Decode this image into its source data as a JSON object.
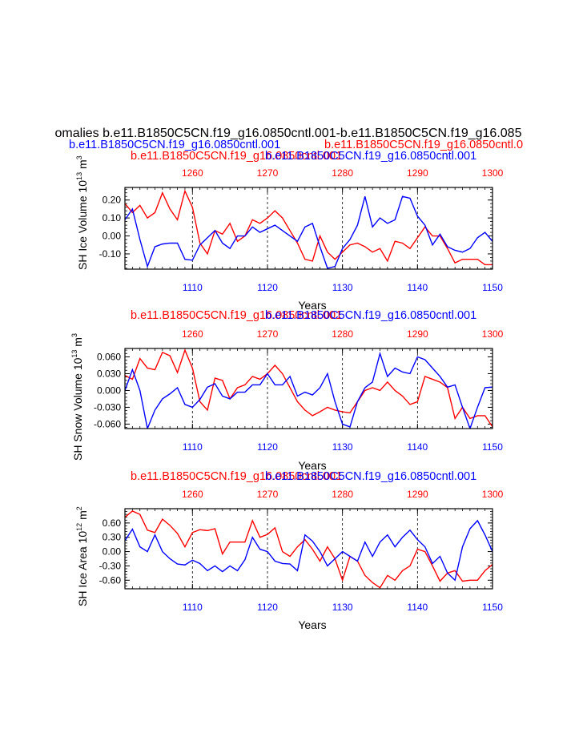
{
  "colors": {
    "red": "#ff0000",
    "blue": "#0000ff",
    "black": "#000000"
  },
  "header": {
    "main_title": "omalies b.e11.B1850C5CN.f19_g16.0850cntl.001-b.e11.B1850C5CN.f19_g16.085",
    "blue_case": "b.e11.B1850C5CN.f19_g16.0850cntl.001",
    "red_case": "b.e11.B1850C5CN.f19_g16.0850cntl.0"
  },
  "chart_data": [
    {
      "type": "line",
      "ylabel": "SH Ice Volume 10",
      "ylabel_exp1": "13",
      "ylabel_unit": " m",
      "ylabel_exp2": "3",
      "xlabel": "Years",
      "red_title": "b.e11.B1850C5CN.f19_g16.0850cntl.001",
      "blue_title": "b.e11.B1850C5CN.f19_g16.0850cntl.001",
      "ylim": [
        -0.185,
        0.27
      ],
      "yticks": [
        0.2,
        0.1,
        0.0,
        -0.1
      ],
      "ytick_labels": [
        "0.20",
        "0.10",
        "0.00",
        "-0.10"
      ],
      "top_axis": {
        "range": [
          1251,
          1300
        ],
        "ticks": [
          1260,
          1270,
          1280,
          1290,
          1300
        ],
        "labels": [
          "1260",
          "1270",
          "1280",
          "1290",
          "1300"
        ]
      },
      "bottom_axis": {
        "range": [
          1101,
          1150
        ],
        "ticks": [
          1110,
          1120,
          1130,
          1140,
          1150
        ],
        "labels": [
          "1110",
          "1120",
          "1130",
          "1140",
          "1150"
        ]
      },
      "series": [
        {
          "name": "red",
          "color": "red",
          "x_start": 1251,
          "values": [
            0.18,
            0.13,
            0.17,
            0.1,
            0.13,
            0.24,
            0.15,
            0.09,
            0.25,
            0.16,
            -0.04,
            -0.1,
            0.03,
            0.01,
            0.07,
            -0.03,
            0.0,
            0.09,
            0.07,
            0.1,
            0.14,
            0.1,
            0.03,
            -0.04,
            -0.13,
            -0.14,
            0.0,
            -0.09,
            -0.13,
            -0.09,
            -0.05,
            -0.04,
            -0.06,
            -0.09,
            -0.07,
            -0.14,
            -0.03,
            -0.04,
            -0.07,
            -0.01,
            0.05,
            0.0,
            0.0,
            -0.07,
            -0.15,
            -0.13,
            -0.13,
            -0.13,
            -0.16,
            -0.16
          ]
        },
        {
          "name": "blue",
          "color": "blue",
          "x_start": 1101,
          "values": [
            0.09,
            0.15,
            -0.02,
            -0.17,
            -0.06,
            -0.045,
            -0.04,
            -0.04,
            -0.13,
            -0.135,
            -0.05,
            -0.01,
            0.03,
            -0.04,
            -0.07,
            0.0,
            0.0,
            0.05,
            0.02,
            0.04,
            0.06,
            0.03,
            0.0,
            -0.03,
            0.05,
            0.07,
            -0.06,
            -0.18,
            -0.17,
            -0.07,
            -0.02,
            0.06,
            0.22,
            0.05,
            0.1,
            0.07,
            0.09,
            0.22,
            0.21,
            0.11,
            0.06,
            -0.05,
            0.01,
            -0.06,
            -0.08,
            -0.09,
            -0.07,
            -0.01,
            0.02,
            -0.03
          ]
        }
      ]
    },
    {
      "type": "line",
      "ylabel": "SH Snow Volume 10",
      "ylabel_exp1": "13",
      "ylabel_unit": " m",
      "ylabel_exp2": "3",
      "xlabel": "Years",
      "red_title": "b.e11.B1850C5CN.f19_g16.0850cntl.001",
      "blue_title": "b.e11.B1850C5CN.f19_g16.0850cntl.001",
      "ylim": [
        -0.068,
        0.075
      ],
      "yticks": [
        0.06,
        0.03,
        0.0,
        -0.03,
        -0.06
      ],
      "ytick_labels": [
        "0.060",
        "0.030",
        "0.000",
        "-0.030",
        "-0.060"
      ],
      "top_axis": {
        "range": [
          1251,
          1300
        ],
        "ticks": [
          1260,
          1270,
          1280,
          1290,
          1300
        ],
        "labels": [
          "1260",
          "1270",
          "1280",
          "1290",
          "1300"
        ]
      },
      "bottom_axis": {
        "range": [
          1101,
          1150
        ],
        "ticks": [
          1110,
          1120,
          1130,
          1140,
          1150
        ],
        "labels": [
          "1110",
          "1120",
          "1130",
          "1140",
          "1150"
        ]
      },
      "series": [
        {
          "name": "red",
          "color": "red",
          "x_start": 1251,
          "values": [
            0.027,
            0.02,
            0.057,
            0.04,
            0.037,
            0.068,
            0.062,
            0.032,
            0.072,
            0.04,
            -0.02,
            -0.035,
            0.022,
            0.018,
            -0.015,
            0.005,
            0.01,
            0.025,
            0.02,
            0.03,
            0.045,
            0.03,
            0.005,
            -0.02,
            -0.035,
            -0.045,
            -0.038,
            -0.03,
            -0.035,
            -0.038,
            -0.04,
            -0.02,
            0.0,
            0.005,
            0.0,
            0.015,
            0.0,
            -0.01,
            -0.025,
            -0.02,
            0.025,
            0.02,
            0.015,
            0.005,
            -0.05,
            -0.03,
            -0.05,
            -0.045,
            -0.045,
            -0.065
          ]
        },
        {
          "name": "blue",
          "color": "blue",
          "x_start": 1101,
          "values": [
            0.0,
            0.037,
            0.0,
            -0.068,
            -0.035,
            -0.015,
            -0.006,
            0.005,
            -0.025,
            -0.03,
            -0.016,
            0.006,
            0.012,
            -0.01,
            -0.015,
            -0.003,
            -0.003,
            0.01,
            0.01,
            0.03,
            0.01,
            0.01,
            0.025,
            -0.01,
            -0.003,
            -0.008,
            0.005,
            0.03,
            -0.02,
            -0.06,
            -0.065,
            -0.02,
            0.005,
            0.015,
            0.066,
            0.025,
            0.04,
            0.033,
            0.03,
            0.06,
            0.055,
            0.04,
            0.025,
            0.006,
            0.01,
            -0.03,
            -0.068,
            -0.03,
            0.005,
            0.006
          ]
        }
      ]
    },
    {
      "type": "line",
      "ylabel": "SH Ice Area 10",
      "ylabel_exp1": "12",
      "ylabel_unit": " m",
      "ylabel_exp2": "2",
      "xlabel": "Years",
      "red_title": "b.e11.B1850C5CN.f19_g16.0850cntl.001",
      "blue_title": "b.e11.B1850C5CN.f19_g16.0850cntl.001",
      "ylim": [
        -0.78,
        0.9
      ],
      "yticks": [
        0.6,
        0.3,
        0.0,
        -0.3,
        -0.6
      ],
      "ytick_labels": [
        "0.60",
        "0.30",
        "0.00",
        "-0.30",
        "-0.60"
      ],
      "top_axis": {
        "range": [
          1251,
          1300
        ],
        "ticks": [
          1260,
          1270,
          1280,
          1290,
          1300
        ],
        "labels": [
          "1260",
          "1270",
          "1280",
          "1290",
          "1300"
        ]
      },
      "bottom_axis": {
        "range": [
          1101,
          1150
        ],
        "ticks": [
          1110,
          1120,
          1130,
          1140,
          1150
        ],
        "labels": [
          "1110",
          "1120",
          "1130",
          "1140",
          "1150"
        ]
      },
      "series": [
        {
          "name": "red",
          "color": "red",
          "x_start": 1251,
          "values": [
            0.72,
            0.85,
            0.78,
            0.45,
            0.4,
            0.68,
            0.55,
            0.38,
            0.1,
            0.4,
            0.46,
            0.44,
            0.48,
            -0.05,
            0.2,
            0.2,
            0.2,
            0.65,
            0.3,
            0.36,
            0.5,
            0.0,
            -0.1,
            0.1,
            0.25,
            0.05,
            -0.2,
            0.1,
            -0.15,
            -0.6,
            -0.1,
            -0.2,
            -0.5,
            -0.65,
            -0.76,
            -0.5,
            -0.6,
            -0.4,
            -0.3,
            0.05,
            0.0,
            -0.3,
            -0.62,
            -0.45,
            -0.4,
            -0.62,
            -0.6,
            -0.6,
            -0.4,
            -0.27
          ]
        },
        {
          "name": "blue",
          "color": "blue",
          "x_start": 1101,
          "values": [
            0.23,
            0.47,
            0.1,
            0.0,
            0.35,
            0.0,
            -0.15,
            -0.26,
            -0.28,
            -0.18,
            -0.25,
            -0.4,
            -0.3,
            -0.42,
            -0.3,
            -0.4,
            -0.17,
            0.3,
            0.05,
            0.0,
            -0.2,
            -0.25,
            -0.26,
            -0.4,
            0.35,
            0.22,
            0.0,
            -0.3,
            -0.15,
            0.0,
            -0.1,
            -0.2,
            0.2,
            -0.1,
            0.2,
            0.35,
            0.1,
            0.3,
            0.45,
            0.25,
            0.1,
            -0.25,
            -0.1,
            -0.45,
            -0.6,
            0.1,
            0.48,
            0.65,
            0.35,
            0.0
          ]
        }
      ]
    }
  ]
}
